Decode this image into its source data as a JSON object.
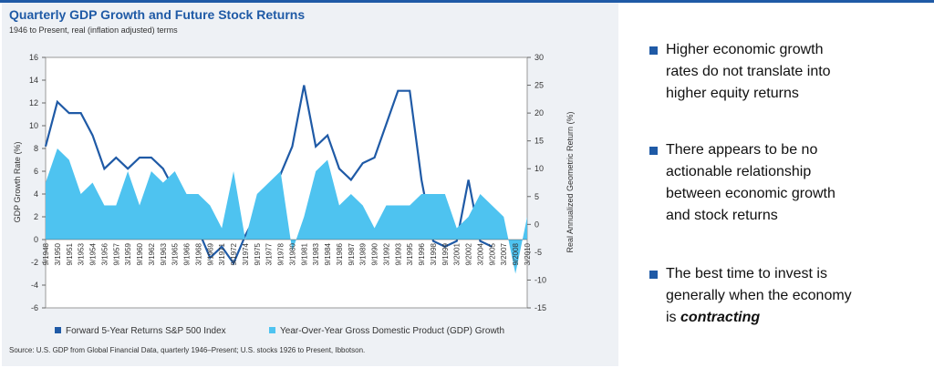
{
  "chart_data": {
    "type": "line-area",
    "title": "Quarterly GDP Growth and Future Stock Returns",
    "subtitle": "1946 to Present, real (inflation adjusted) terms",
    "y_label": "GDP Growth Rate (%)",
    "y2_label": "Real Annualized Geometric Return (%)",
    "source": "Source: U.S. GDP from Global Financial Data, quarterly 1946–Present; U.S. stocks 1926 to Present, Ibbotson.",
    "categories": [
      "9/1948",
      "3/1950",
      "9/1951",
      "3/1953",
      "9/1954",
      "3/1956",
      "9/1957",
      "3/1959",
      "9/1960",
      "3/1962",
      "9/1963",
      "3/1965",
      "9/1966",
      "3/1968",
      "9/1969",
      "3/1971",
      "9/1972",
      "3/1974",
      "9/1975",
      "3/1977",
      "9/1978",
      "3/1980",
      "9/1981",
      "3/1983",
      "9/1984",
      "3/1986",
      "9/1987",
      "3/1989",
      "9/1990",
      "3/1992",
      "9/1993",
      "3/1995",
      "9/1996",
      "3/1998",
      "9/1999",
      "3/2001",
      "9/2002",
      "3/2004",
      "9/2005",
      "3/2007",
      "9/2008",
      "3/2010"
    ],
    "series": [
      {
        "name": "Forward 5-Year Returns S&P 500 Index",
        "color": "#1f5aa6",
        "axis": "y2",
        "kind": "line",
        "values": [
          14,
          22,
          20,
          20,
          16,
          10,
          12,
          10,
          12,
          12,
          10,
          6,
          3,
          -1,
          -6,
          -4,
          -7,
          -2,
          2,
          6,
          9,
          14,
          25,
          14,
          16,
          10,
          8,
          11,
          12,
          18,
          24,
          24,
          8,
          -3,
          -4,
          -3,
          8,
          -3,
          -4,
          null,
          null,
          null
        ]
      },
      {
        "name": "Year-Over-Year Gross Domestic Product (GDP) Growth",
        "color": "#4ec3f0",
        "axis": "y",
        "kind": "area",
        "values": [
          5,
          8,
          7,
          4,
          5,
          3,
          3,
          6,
          3,
          6,
          5,
          6,
          4,
          4,
          3,
          1,
          6,
          0,
          4,
          5,
          6,
          -1,
          2,
          6,
          7,
          3,
          4,
          3,
          1,
          3,
          3,
          3,
          4,
          4,
          4,
          1,
          2,
          4,
          3,
          2,
          -3,
          2
        ]
      }
    ],
    "ylim": [
      -6,
      16
    ],
    "yticks": [
      -6,
      -4,
      -2,
      0,
      2,
      4,
      6,
      8,
      10,
      12,
      14,
      16
    ],
    "y2lim": [
      -15,
      30
    ],
    "y2ticks": [
      -15,
      -10,
      -5,
      0,
      5,
      10,
      15,
      20,
      25,
      30
    ]
  },
  "bullets": [
    "Higher economic growth rates do not translate into higher equity returns",
    "There appears to be no actionable relationship between economic growth and stock returns",
    "The best time to invest is generally when the economy is"
  ],
  "bullet_emphasis": "contracting"
}
